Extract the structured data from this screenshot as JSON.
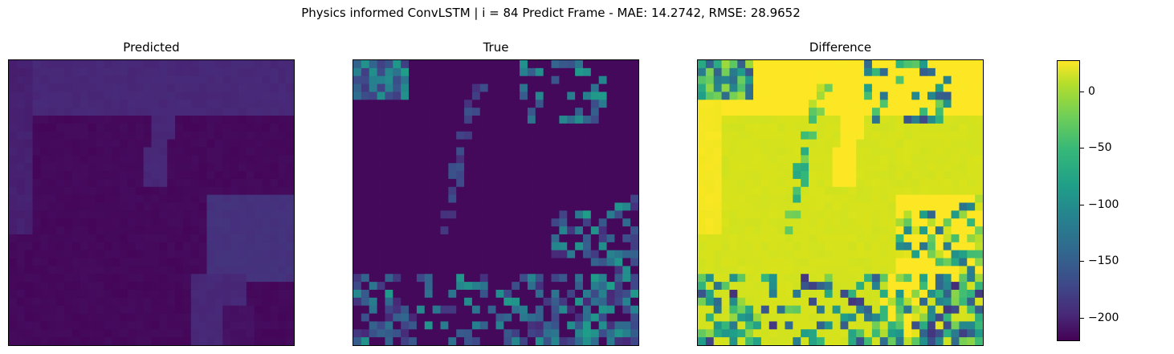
{
  "figure": {
    "suptitle": "Physics informed ConvLSTM | i = 84 Predict Frame - MAE: 14.2742, RMSE: 28.9652"
  },
  "chart_data": [
    {
      "type": "heatmap",
      "title": "Predicted",
      "grid": false,
      "axes": "no ticks",
      "colormap": "viridis",
      "description_values": "smooth low values, mostly near -210 to -190 in colorbar units"
    },
    {
      "type": "heatmap",
      "title": "True",
      "grid": false,
      "axes": "no ticks",
      "colormap": "viridis",
      "description_values": "mostly dark with scattered higher-valued patches"
    },
    {
      "type": "heatmap",
      "title": "Difference",
      "grid": false,
      "axes": "no ticks",
      "colormap": "viridis",
      "description_values": "mostly near 0 with scattered strongly negative patches"
    },
    {
      "type": "colorbar",
      "colormap": "viridis",
      "range": [
        -218,
        25
      ],
      "ticks": [
        0,
        -50,
        -100,
        -150,
        -200
      ],
      "tick_labels": [
        "0",
        "−50",
        "−100",
        "−150",
        "−200"
      ]
    }
  ],
  "colors": {
    "viridis_low": "#440154",
    "viridis_mid": "#21918c",
    "viridis_high": "#fde725"
  }
}
